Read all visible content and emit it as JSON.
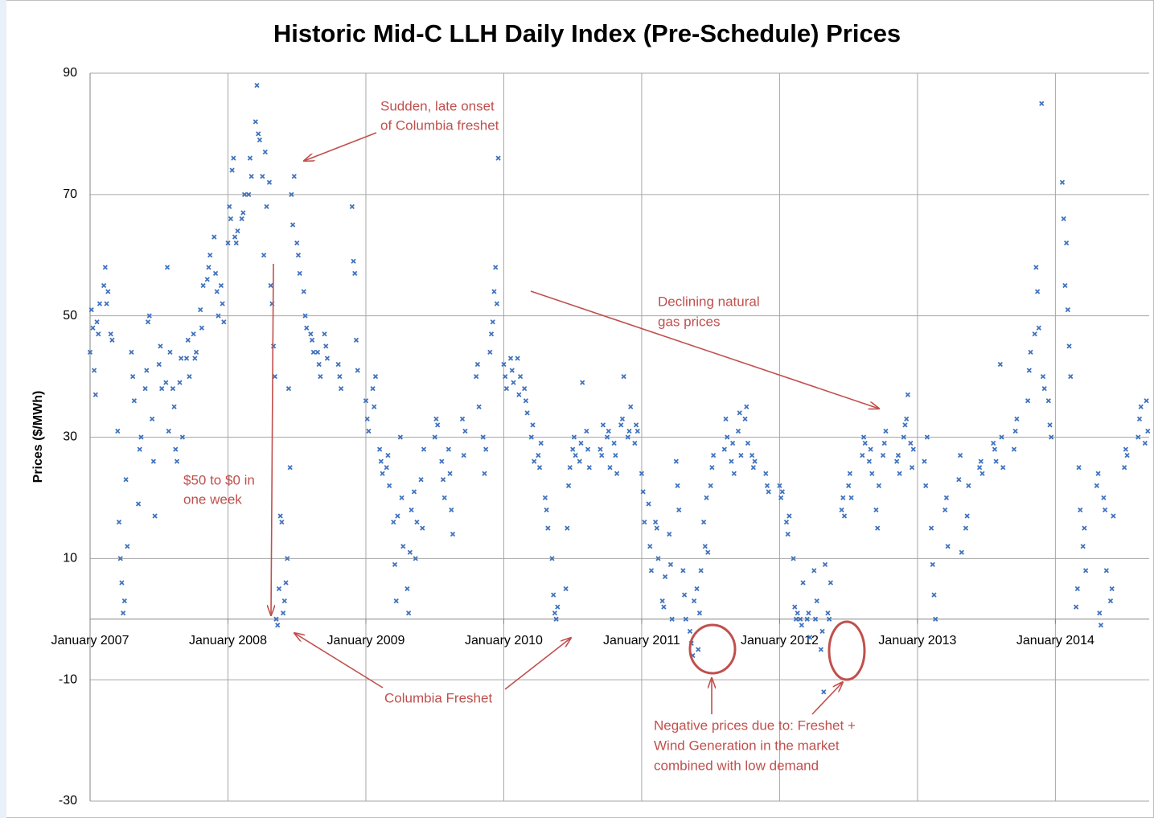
{
  "chart_data": {
    "type": "scatter",
    "title": "Historic Mid-C LLH Daily Index (Pre-Schedule) Prices",
    "y_label": "Prices ($/MWh)",
    "xlim": [
      2007,
      2014.68
    ],
    "xticks": [
      {
        "value": 2007,
        "label": "January 2007"
      },
      {
        "value": 2008,
        "label": "January 2008"
      },
      {
        "value": 2009,
        "label": "January 2009"
      },
      {
        "value": 2010,
        "label": "January 2010"
      },
      {
        "value": 2011,
        "label": "January 2011"
      },
      {
        "value": 2012,
        "label": "January 2012"
      },
      {
        "value": 2013,
        "label": "January 2013"
      },
      {
        "value": 2014,
        "label": "January 2014"
      }
    ],
    "ylim": [
      -30,
      90
    ],
    "yticks": [
      -30,
      -10,
      10,
      30,
      50,
      70,
      90
    ],
    "grid": true,
    "color": "#3f72bd",
    "x": [
      2007.0,
      2007.01,
      2007.02,
      2007.03,
      2007.04,
      2007.05,
      2007.06,
      2007.07,
      2007.1,
      2007.11,
      2007.12,
      2007.13,
      2007.15,
      2007.16,
      2007.2,
      2007.21,
      2007.22,
      2007.23,
      2007.24,
      2007.25,
      2007.26,
      2007.27,
      2007.3,
      2007.31,
      2007.32,
      2007.35,
      2007.36,
      2007.37,
      2007.4,
      2007.41,
      2007.42,
      2007.43,
      2007.45,
      2007.46,
      2007.47,
      2007.5,
      2007.51,
      2007.52,
      2007.55,
      2007.56,
      2007.57,
      2007.58,
      2007.6,
      2007.61,
      2007.62,
      2007.63,
      2007.65,
      2007.66,
      2007.67,
      2007.7,
      2007.71,
      2007.72,
      2007.75,
      2007.76,
      2007.77,
      2007.8,
      2007.81,
      2007.82,
      2007.85,
      2007.86,
      2007.87,
      2007.9,
      2007.91,
      2007.92,
      2007.93,
      2007.95,
      2007.96,
      2007.97,
      2008.0,
      2008.01,
      2008.02,
      2008.03,
      2008.04,
      2008.05,
      2008.06,
      2008.07,
      2008.1,
      2008.11,
      2008.12,
      2008.15,
      2008.16,
      2008.17,
      2008.2,
      2008.21,
      2008.22,
      2008.23,
      2008.25,
      2008.26,
      2008.27,
      2008.28,
      2008.3,
      2008.31,
      2008.32,
      2008.33,
      2008.34,
      2008.35,
      2008.36,
      2008.37,
      2008.38,
      2008.39,
      2008.4,
      2008.41,
      2008.42,
      2008.43,
      2008.44,
      2008.45,
      2008.46,
      2008.47,
      2008.48,
      2008.5,
      2008.51,
      2008.52,
      2008.55,
      2008.56,
      2008.57,
      2008.6,
      2008.61,
      2008.62,
      2008.65,
      2008.66,
      2008.67,
      2008.7,
      2008.71,
      2008.72,
      2008.8,
      2008.81,
      2008.82,
      2008.9,
      2008.91,
      2008.92,
      2008.93,
      2008.94,
      2009.0,
      2009.01,
      2009.02,
      2009.05,
      2009.06,
      2009.07,
      2009.1,
      2009.11,
      2009.12,
      2009.15,
      2009.16,
      2009.17,
      2009.2,
      2009.21,
      2009.22,
      2009.23,
      2009.25,
      2009.26,
      2009.27,
      2009.3,
      2009.31,
      2009.32,
      2009.33,
      2009.35,
      2009.36,
      2009.37,
      2009.4,
      2009.41,
      2009.42,
      2009.5,
      2009.51,
      2009.52,
      2009.55,
      2009.56,
      2009.57,
      2009.6,
      2009.61,
      2009.62,
      2009.63,
      2009.7,
      2009.71,
      2009.72,
      2009.8,
      2009.81,
      2009.82,
      2009.85,
      2009.86,
      2009.87,
      2009.9,
      2009.91,
      2009.92,
      2009.93,
      2009.94,
      2009.95,
      2009.96,
      2010.0,
      2010.01,
      2010.02,
      2010.05,
      2010.06,
      2010.07,
      2010.1,
      2010.11,
      2010.12,
      2010.15,
      2010.16,
      2010.17,
      2010.2,
      2010.21,
      2010.22,
      2010.25,
      2010.26,
      2010.27,
      2010.3,
      2010.31,
      2010.32,
      2010.35,
      2010.36,
      2010.37,
      2010.38,
      2010.39,
      2010.45,
      2010.46,
      2010.47,
      2010.48,
      2010.5,
      2010.51,
      2010.52,
      2010.55,
      2010.56,
      2010.57,
      2010.6,
      2010.61,
      2010.62,
      2010.7,
      2010.71,
      2010.72,
      2010.75,
      2010.76,
      2010.77,
      2010.8,
      2010.81,
      2010.82,
      2010.85,
      2010.86,
      2010.87,
      2010.9,
      2010.91,
      2010.92,
      2010.95,
      2010.96,
      2010.97,
      2011.0,
      2011.01,
      2011.02,
      2011.05,
      2011.06,
      2011.07,
      2011.1,
      2011.11,
      2011.12,
      2011.15,
      2011.16,
      2011.17,
      2011.2,
      2011.21,
      2011.22,
      2011.25,
      2011.26,
      2011.27,
      2011.3,
      2011.31,
      2011.32,
      2011.35,
      2011.36,
      2011.37,
      2011.38,
      2011.4,
      2011.41,
      2011.42,
      2011.43,
      2011.45,
      2011.46,
      2011.47,
      2011.48,
      2011.5,
      2011.51,
      2011.52,
      2011.6,
      2011.61,
      2011.62,
      2011.65,
      2011.66,
      2011.67,
      2011.7,
      2011.71,
      2011.72,
      2011.75,
      2011.76,
      2011.77,
      2011.8,
      2011.81,
      2011.82,
      2011.9,
      2011.91,
      2011.92,
      2012.0,
      2012.01,
      2012.02,
      2012.05,
      2012.06,
      2012.07,
      2012.1,
      2012.11,
      2012.12,
      2012.13,
      2012.15,
      2012.16,
      2012.17,
      2012.2,
      2012.21,
      2012.22,
      2012.25,
      2012.26,
      2012.27,
      2012.3,
      2012.31,
      2012.32,
      2012.33,
      2012.35,
      2012.36,
      2012.37,
      2012.45,
      2012.46,
      2012.47,
      2012.5,
      2012.51,
      2012.52,
      2012.6,
      2012.61,
      2012.62,
      2012.65,
      2012.66,
      2012.67,
      2012.7,
      2012.71,
      2012.72,
      2012.75,
      2012.76,
      2012.77,
      2012.85,
      2012.86,
      2012.87,
      2012.9,
      2012.91,
      2012.92,
      2012.93,
      2012.95,
      2012.96,
      2012.97,
      2013.05,
      2013.06,
      2013.07,
      2013.1,
      2013.11,
      2013.12,
      2013.13,
      2013.2,
      2013.21,
      2013.22,
      2013.3,
      2013.31,
      2013.32,
      2013.35,
      2013.36,
      2013.37,
      2013.45,
      2013.46,
      2013.47,
      2013.55,
      2013.56,
      2013.57,
      2013.6,
      2013.61,
      2013.62,
      2013.7,
      2013.71,
      2013.72,
      2013.8,
      2013.81,
      2013.82,
      2013.85,
      2013.86,
      2013.87,
      2013.88,
      2013.9,
      2013.91,
      2013.92,
      2013.95,
      2013.96,
      2013.97,
      2014.05,
      2014.06,
      2014.07,
      2014.08,
      2014.09,
      2014.1,
      2014.11,
      2014.15,
      2014.16,
      2014.17,
      2014.18,
      2014.2,
      2014.21,
      2014.22,
      2014.3,
      2014.31,
      2014.32,
      2014.33,
      2014.35,
      2014.36,
      2014.37,
      2014.4,
      2014.41,
      2014.42,
      2014.5,
      2014.51,
      2014.52,
      2014.6,
      2014.61,
      2014.62,
      2014.65,
      2014.66,
      2014.67
    ],
    "values": [
      44,
      51,
      48,
      41,
      37,
      49,
      47,
      52,
      55,
      58,
      52,
      54,
      47,
      46,
      31,
      16,
      10,
      6,
      1,
      3,
      23,
      12,
      44,
      40,
      36,
      19,
      28,
      30,
      38,
      41,
      49,
      50,
      33,
      26,
      17,
      42,
      45,
      38,
      39,
      58,
      31,
      44,
      38,
      35,
      28,
      26,
      39,
      43,
      30,
      43,
      46,
      40,
      47,
      43,
      44,
      51,
      48,
      55,
      56,
      58,
      60,
      63,
      57,
      54,
      50,
      55,
      52,
      49,
      62,
      68,
      66,
      74,
      76,
      63,
      62,
      64,
      66,
      67,
      70,
      70,
      76,
      73,
      82,
      88,
      80,
      79,
      73,
      60,
      77,
      68,
      72,
      55,
      52,
      45,
      40,
      0,
      -1,
      5,
      17,
      16,
      1,
      3,
      6,
      10,
      38,
      25,
      70,
      65,
      73,
      62,
      60,
      57,
      54,
      50,
      48,
      47,
      46,
      44,
      44,
      42,
      40,
      47,
      45,
      43,
      42,
      40,
      38,
      68,
      59,
      57,
      46,
      41,
      36,
      33,
      31,
      38,
      35,
      40,
      28,
      26,
      24,
      25,
      27,
      22,
      16,
      9,
      3,
      17,
      30,
      20,
      12,
      5,
      1,
      11,
      18,
      21,
      10,
      16,
      23,
      15,
      28,
      30,
      33,
      32,
      26,
      23,
      20,
      28,
      24,
      18,
      14,
      33,
      27,
      31,
      40,
      42,
      35,
      30,
      24,
      28,
      44,
      47,
      49,
      54,
      58,
      52,
      76,
      42,
      40,
      38,
      43,
      41,
      39,
      43,
      37,
      40,
      38,
      36,
      34,
      30,
      32,
      26,
      27,
      25,
      29,
      20,
      18,
      15,
      10,
      4,
      1,
      0,
      2,
      5,
      15,
      22,
      25,
      28,
      30,
      27,
      26,
      29,
      39,
      31,
      28,
      25,
      28,
      27,
      32,
      30,
      31,
      25,
      29,
      27,
      24,
      32,
      33,
      40,
      30,
      31,
      35,
      29,
      32,
      31,
      24,
      21,
      16,
      19,
      12,
      8,
      16,
      15,
      10,
      3,
      2,
      7,
      14,
      9,
      0,
      26,
      22,
      18,
      8,
      4,
      0,
      -2,
      -4,
      -6,
      3,
      5,
      -5,
      1,
      8,
      16,
      12,
      20,
      11,
      22,
      25,
      27,
      28,
      33,
      30,
      26,
      29,
      24,
      31,
      34,
      27,
      33,
      35,
      29,
      27,
      25,
      26,
      24,
      22,
      21,
      22,
      20,
      21,
      16,
      14,
      17,
      10,
      2,
      0,
      1,
      0,
      -1,
      6,
      0,
      1,
      -3,
      8,
      0,
      3,
      -5,
      -2,
      -12,
      9,
      1,
      0,
      6,
      18,
      20,
      17,
      22,
      24,
      20,
      27,
      30,
      29,
      26,
      28,
      24,
      18,
      15,
      22,
      27,
      29,
      31,
      26,
      27,
      24,
      30,
      32,
      33,
      37,
      29,
      25,
      28,
      26,
      22,
      30,
      15,
      9,
      4,
      0,
      18,
      20,
      12,
      23,
      27,
      11,
      15,
      17,
      22,
      25,
      26,
      24,
      29,
      28,
      26,
      42,
      30,
      25,
      28,
      31,
      33,
      36,
      41,
      44,
      47,
      58,
      54,
      48,
      85,
      40,
      38,
      36,
      32,
      30,
      72,
      66,
      55,
      62,
      51,
      45,
      40,
      2,
      5,
      25,
      18,
      12,
      15,
      8,
      22,
      24,
      1,
      -1,
      20,
      18,
      8,
      3,
      5,
      17,
      25,
      28,
      27,
      30,
      33,
      35,
      29,
      36,
      31
    ],
    "annotations": [
      {
        "lines": [
          "Sudden, late onset",
          "of Columbia freshet"
        ]
      },
      {
        "lines": [
          "$50 to $0 in",
          "one week"
        ]
      },
      {
        "lines": [
          "Declining natural",
          "gas prices"
        ]
      },
      {
        "lines": [
          "Columbia Freshet"
        ]
      },
      {
        "lines": [
          "Negative prices due to: Freshet +",
          "Wind Generation in the market",
          "combined with low demand"
        ]
      }
    ]
  }
}
